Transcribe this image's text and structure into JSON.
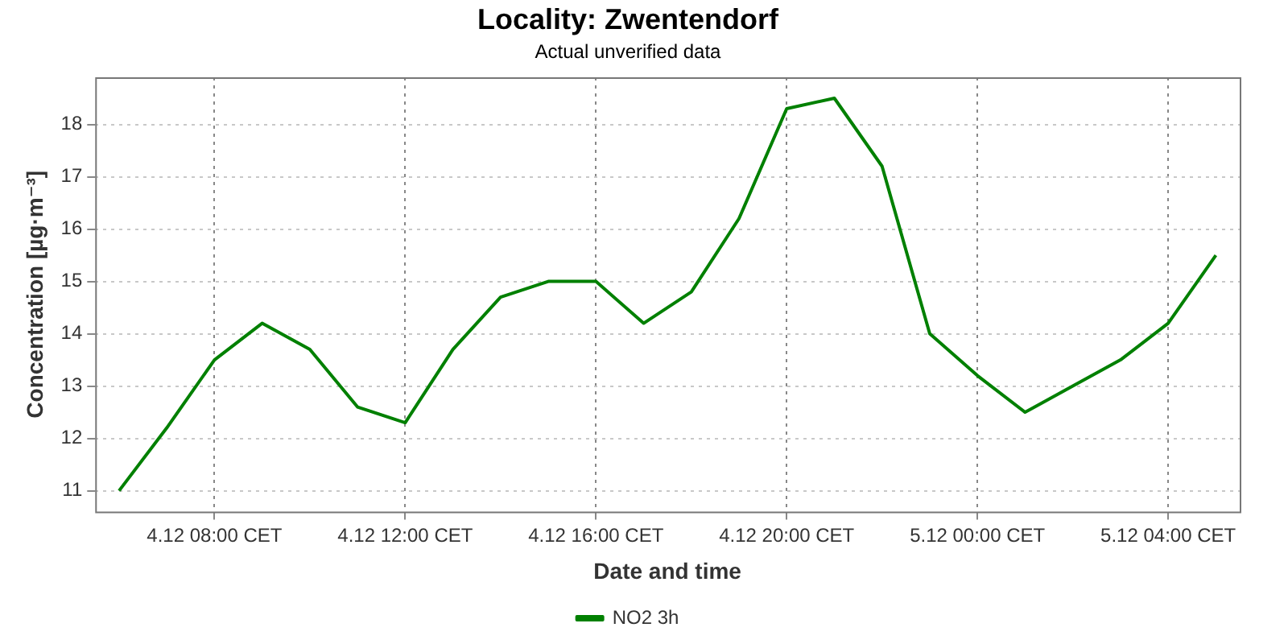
{
  "chart_data": {
    "type": "line",
    "title": "Locality: Zwentendorf",
    "subtitle": "Actual unverified data",
    "xlabel": "Date and time",
    "ylabel": "Concentration [µg·m⁻³]",
    "categories": [
      null,
      null,
      "4.12 08:00 CET",
      null,
      null,
      null,
      "4.12 12:00 CET",
      null,
      null,
      null,
      "4.12 16:00 CET",
      null,
      null,
      null,
      "4.12 20:00 CET",
      null,
      null,
      null,
      "5.12 00:00 CET",
      null,
      null,
      null,
      "5.12 04:00 CET",
      null
    ],
    "series": [
      {
        "name": "NO2 3h",
        "color": "#008000",
        "values": [
          11.0,
          12.2,
          13.5,
          14.2,
          13.7,
          12.6,
          12.3,
          13.7,
          14.7,
          15.0,
          15.0,
          14.2,
          14.8,
          16.2,
          18.3,
          18.5,
          17.2,
          14.0,
          13.2,
          12.5,
          13.0,
          13.5,
          14.2,
          15.5
        ]
      }
    ],
    "ylim": [
      10.6,
      18.9
    ],
    "yticks": [
      11,
      12,
      13,
      14,
      15,
      16,
      17,
      18
    ],
    "grid": true,
    "legend": "bottom",
    "marker": "none",
    "line_style": "solid"
  }
}
